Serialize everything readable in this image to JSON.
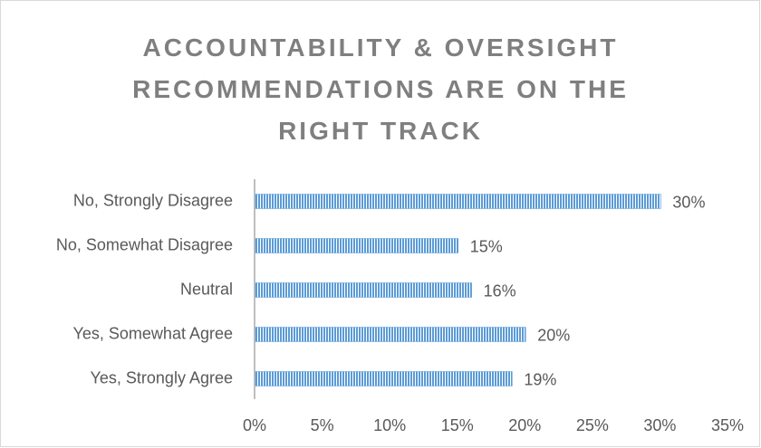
{
  "chart_data": {
    "type": "hbar",
    "title": "ACCOUNTABILITY & OVERSIGHT RECOMMENDATIONS ARE ON THE RIGHT TRACK",
    "categories": [
      "No, Strongly Disagree",
      "No, Somewhat Disagree",
      "Neutral",
      "Yes, Somewhat Agree",
      "Yes, Strongly Agree"
    ],
    "values": [
      30,
      15,
      16,
      20,
      19
    ],
    "value_labels": [
      "30%",
      "15%",
      "16%",
      "20%",
      "19%"
    ],
    "color": "#5b9bd5",
    "xlim": [
      0,
      35
    ],
    "xticks": [
      {
        "value": 0,
        "label": "0%"
      },
      {
        "value": 5,
        "label": "5%"
      },
      {
        "value": 10,
        "label": "10%"
      },
      {
        "value": 15,
        "label": "15%"
      },
      {
        "value": 20,
        "label": "20%"
      },
      {
        "value": 25,
        "label": "25%"
      },
      {
        "value": 30,
        "label": "30%"
      },
      {
        "value": 35,
        "label": "35%"
      }
    ]
  }
}
